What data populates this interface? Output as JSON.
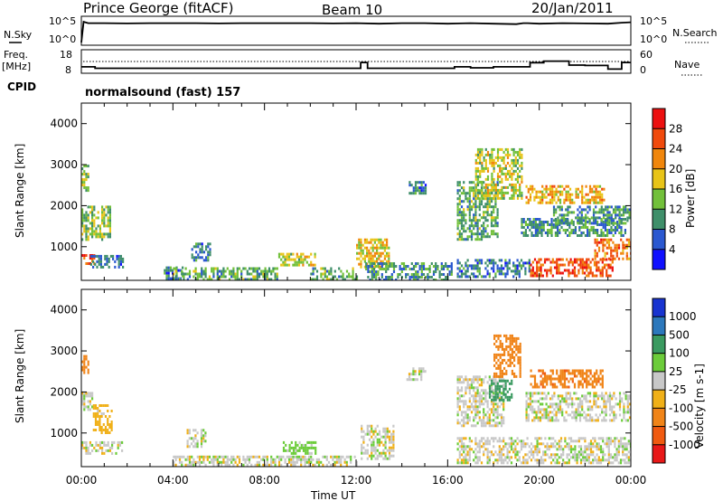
{
  "header": {
    "station": "Prince George (fitACF)",
    "beam": "Beam 10",
    "date": "20/Jan/2011"
  },
  "noise_panel": {
    "left_label": "N.Sky",
    "right_label": "N.Search",
    "left_ticks": [
      "10^5",
      "10^0"
    ],
    "right_ticks": [
      "10^5",
      "10^0"
    ]
  },
  "freq_panel": {
    "left_label_1": "Freq.",
    "left_label_2": "[MHz]",
    "right_label": "Nave",
    "left_ticks": [
      "18",
      "8"
    ],
    "right_ticks": [
      "60",
      "0"
    ]
  },
  "cpid": {
    "label": "CPID",
    "program": "normalsound (fast) 157"
  },
  "time_axis": {
    "title": "Time UT",
    "ticks": [
      "00:00",
      "04:00",
      "08:00",
      "12:00",
      "16:00",
      "20:00",
      "00:00"
    ]
  },
  "range_axis": {
    "title": "Slant Range [km]",
    "ticks": [
      "1000",
      "2000",
      "3000",
      "4000"
    ]
  },
  "power_colorbar": {
    "title": "Power [dB]",
    "labels": [
      "4",
      "8",
      "12",
      "16",
      "20",
      "24",
      "28"
    ],
    "colors": [
      "#1010ff",
      "#2a58d0",
      "#3f8f6a",
      "#72c03a",
      "#e8c418",
      "#f0860c",
      "#f04a0c",
      "#ec1010"
    ]
  },
  "velocity_colorbar": {
    "title": "Velocity [m s-1]",
    "labels": [
      "1000",
      "500",
      "100",
      "25",
      "-25",
      "-100",
      "-500",
      "-1000"
    ],
    "colors": [
      "#1834d0",
      "#2c78bc",
      "#3a9a60",
      "#6ccc3a",
      "#c8c8c8",
      "#f0b018",
      "#f08418",
      "#f05a10",
      "#e81818"
    ]
  },
  "chart_data": {
    "type": "heatmap",
    "title": "Prince George (fitACF)  Beam 10  20/Jan/2011",
    "xlabel": "Time UT",
    "ylabel": "Slant Range [km]",
    "xlim": [
      "00:00",
      "24:00"
    ],
    "ylim": [
      180,
      4500
    ],
    "nsky_nsearch_series": {
      "x_hours": [
        0,
        0.1,
        0.3,
        1.0,
        2.0,
        3.0,
        4.0,
        5.0,
        6.0,
        7.0,
        8.0,
        9.0,
        10.0,
        11.0,
        12.0,
        13.0,
        14.0,
        15.0,
        16.0,
        17.0,
        18.0,
        19.0,
        19.3,
        19.5,
        20.0,
        21.0,
        22.0,
        23.0,
        23.6,
        24.0
      ],
      "y_log10": [
        0.2,
        4.6,
        4.3,
        4.3,
        4.25,
        4.3,
        4.3,
        4.3,
        4.25,
        4.3,
        4.3,
        4.3,
        4.3,
        4.25,
        4.3,
        4.2,
        4.3,
        4.3,
        4.2,
        4.3,
        4.2,
        4.1,
        4.3,
        4.3,
        4.2,
        4.3,
        4.25,
        4.2,
        4.4,
        4.5
      ]
    },
    "frequency_series": {
      "x_hours": [
        0,
        0.6,
        0.6,
        12.2,
        12.2,
        12.5,
        12.5,
        16.3,
        16.3,
        17.0,
        17.0,
        18.0,
        18.0,
        19.6,
        19.6,
        20.2,
        20.2,
        21.3,
        21.3,
        22.0,
        22.0,
        23.0,
        23.0,
        23.6,
        23.6,
        24.0
      ],
      "mhz": [
        10.3,
        10.3,
        9.6,
        9.6,
        12.5,
        12.5,
        9.6,
        9.6,
        10.3,
        10.3,
        9.8,
        9.8,
        10.3,
        10.3,
        12.4,
        12.4,
        13.2,
        13.2,
        11.2,
        11.2,
        11.0,
        11.0,
        9.2,
        9.2,
        12.5,
        12.5
      ],
      "nave_dotted": 28
    },
    "power_regions": [
      {
        "t0": 0.0,
        "t1": 0.3,
        "r0": 2400,
        "r1": 3000,
        "db": 14
      },
      {
        "t0": 0.0,
        "t1": 1.3,
        "r0": 1200,
        "r1": 2000,
        "db": 14
      },
      {
        "t0": 0.0,
        "t1": 0.6,
        "r0": 560,
        "r1": 820,
        "db": 26
      },
      {
        "t0": 0.3,
        "t1": 1.8,
        "r0": 500,
        "r1": 800,
        "db": 8
      },
      {
        "t0": 3.6,
        "t1": 4.4,
        "r0": 200,
        "r1": 520,
        "db": 8
      },
      {
        "t0": 4.8,
        "t1": 5.6,
        "r0": 700,
        "r1": 1100,
        "db": 8
      },
      {
        "t0": 4.0,
        "t1": 8.6,
        "r0": 200,
        "r1": 500,
        "db": 12
      },
      {
        "t0": 8.6,
        "t1": 10.2,
        "r0": 550,
        "r1": 850,
        "db": 16
      },
      {
        "t0": 10.0,
        "t1": 12.0,
        "r0": 200,
        "r1": 500,
        "db": 12
      },
      {
        "t0": 12.0,
        "t1": 13.4,
        "r0": 500,
        "r1": 1200,
        "db": 18
      },
      {
        "t0": 12.4,
        "t1": 16.2,
        "r0": 200,
        "r1": 620,
        "db": 10
      },
      {
        "t0": 14.3,
        "t1": 15.0,
        "r0": 2300,
        "r1": 2600,
        "db": 8
      },
      {
        "t0": 16.4,
        "t1": 18.2,
        "r0": 1200,
        "r1": 2600,
        "db": 12
      },
      {
        "t0": 17.2,
        "t1": 19.2,
        "r0": 2200,
        "r1": 3400,
        "db": 16
      },
      {
        "t0": 19.4,
        "t1": 22.8,
        "r0": 2100,
        "r1": 2500,
        "db": 20
      },
      {
        "t0": 19.2,
        "t1": 23.8,
        "r0": 1300,
        "r1": 1700,
        "db": 10
      },
      {
        "t0": 20.6,
        "t1": 24.0,
        "r0": 1600,
        "r1": 2000,
        "db": 10
      },
      {
        "t0": 16.4,
        "t1": 19.6,
        "r0": 280,
        "r1": 700,
        "db": 8
      },
      {
        "t0": 19.6,
        "t1": 23.2,
        "r0": 300,
        "r1": 720,
        "db": 26
      },
      {
        "t0": 22.4,
        "t1": 24.0,
        "r0": 700,
        "r1": 1200,
        "db": 24
      }
    ],
    "velocity_regions": [
      {
        "t0": 0.0,
        "t1": 0.3,
        "r0": 2500,
        "r1": 2900,
        "v": -300
      },
      {
        "t0": 0.0,
        "t1": 0.5,
        "r0": 1600,
        "r1": 2000,
        "v": 0
      },
      {
        "t0": 0.5,
        "t1": 1.3,
        "r0": 1000,
        "r1": 1700,
        "v": -60
      },
      {
        "t0": 0.0,
        "t1": 1.8,
        "r0": 500,
        "r1": 800,
        "v": 0
      },
      {
        "t0": 4.6,
        "t1": 5.4,
        "r0": 700,
        "r1": 1100,
        "v": 0
      },
      {
        "t0": 8.8,
        "t1": 10.2,
        "r0": 500,
        "r1": 800,
        "v": 60
      },
      {
        "t0": 4.0,
        "t1": 12.0,
        "r0": 200,
        "r1": 450,
        "v": 0
      },
      {
        "t0": 12.2,
        "t1": 13.6,
        "r0": 400,
        "r1": 1200,
        "v": 0
      },
      {
        "t0": 14.2,
        "t1": 15.0,
        "r0": 2300,
        "r1": 2600,
        "v": 0
      },
      {
        "t0": 16.4,
        "t1": 18.4,
        "r0": 1200,
        "r1": 2400,
        "v": 0
      },
      {
        "t0": 17.8,
        "t1": 18.8,
        "r0": 1800,
        "r1": 2300,
        "v": 200
      },
      {
        "t0": 18.0,
        "t1": 19.2,
        "r0": 2400,
        "r1": 3400,
        "v": -300
      },
      {
        "t0": 19.6,
        "t1": 22.8,
        "r0": 2150,
        "r1": 2550,
        "v": -400
      },
      {
        "t0": 19.4,
        "t1": 24.0,
        "r0": 1300,
        "r1": 2000,
        "v": 0
      },
      {
        "t0": 16.4,
        "t1": 24.0,
        "r0": 280,
        "r1": 900,
        "v": 0
      }
    ]
  }
}
